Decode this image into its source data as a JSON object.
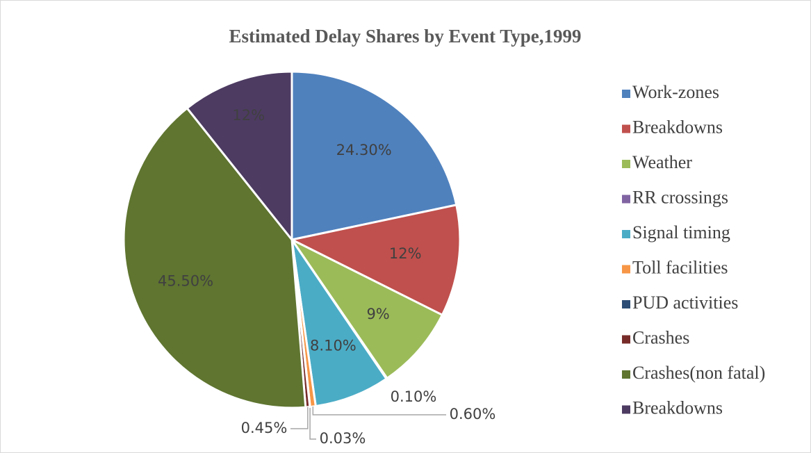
{
  "chart_data": {
    "type": "pie",
    "title": "Estimated Delay Shares by Event Type,1999",
    "categories": [
      "Work-zones",
      "Breakdowns",
      "Weather",
      "RR crossings",
      "Signal timing",
      "Toll facilities",
      "PUD activities",
      "Crashes",
      "Crashes(non fatal)",
      "Breakdowns"
    ],
    "values": [
      24.3,
      12,
      9,
      0.1,
      8.1,
      0.6,
      0.03,
      0.45,
      45.5,
      12
    ],
    "value_labels": [
      "24.30%",
      "12%",
      "9%",
      "0.10%",
      "8.10%",
      "0.60%",
      "0.03%",
      "0.45%",
      "45.50%",
      "12%"
    ],
    "colors": [
      "#4f81bd",
      "#c0504d",
      "#9bbb59",
      "#8064a2",
      "#4bacc6",
      "#f79646",
      "#2c4d75",
      "#772c2a",
      "#5f7530",
      "#4d3b62"
    ],
    "legend": "right"
  }
}
